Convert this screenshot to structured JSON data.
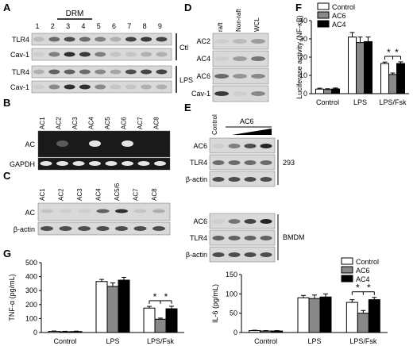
{
  "panels": {
    "A": {
      "letter": "A",
      "drm_label": "DRM",
      "lanes": [
        "1",
        "2",
        "3",
        "4",
        "5",
        "6",
        "7",
        "8",
        "9"
      ],
      "rows": [
        "TLR4",
        "Cav-1",
        "TLR4",
        "Cav-1"
      ],
      "groups": [
        "Ctl",
        "LPS"
      ]
    },
    "B": {
      "letter": "B",
      "lanes": [
        "AC1",
        "AC2",
        "AC3",
        "AC4",
        "AC5",
        "AC6",
        "AC7",
        "AC8"
      ],
      "rows": [
        "AC",
        "GAPDH"
      ]
    },
    "C": {
      "letter": "C",
      "lanes": [
        "AC1",
        "AC2",
        "AC3",
        "AC4",
        "AC5/6",
        "AC7",
        "AC8"
      ],
      "rows": [
        "AC",
        "β-actin"
      ]
    },
    "D": {
      "letter": "D",
      "lanes": [
        "raft",
        "Non-raft",
        "WCL"
      ],
      "rows": [
        "AC2",
        "AC4",
        "AC6",
        "Cav-1"
      ]
    },
    "E": {
      "letter": "E",
      "control_label": "Control",
      "treatment_label": "AC6",
      "rows_top": [
        "AC6",
        "TLR4",
        "β-actin"
      ],
      "rows_bottom": [
        "AC6",
        "TLR4",
        "β-actin"
      ],
      "cells_top": "293",
      "cells_bottom": "BMDM"
    },
    "F": {
      "letter": "F"
    },
    "G": {
      "letter": "G"
    }
  },
  "star": "*",
  "chart_data": [
    {
      "panel": "F",
      "type": "bar",
      "ylabel": "Luciferase activity (NF-κB)",
      "categories": [
        "Control",
        "LPS",
        "LPS/Fsk"
      ],
      "series": [
        {
          "name": "Control",
          "values": [
            2.5,
            31,
            16.5
          ],
          "errors": [
            0.5,
            2.5,
            0.8
          ],
          "color": "#ffffff"
        },
        {
          "name": "AC6",
          "values": [
            2.3,
            28,
            10.5
          ],
          "errors": [
            0.4,
            3.0,
            0.8
          ],
          "color": "#888888"
        },
        {
          "name": "AC4",
          "values": [
            2.6,
            28.5,
            16.5
          ],
          "errors": [
            0.5,
            2.5,
            0.9
          ],
          "color": "#000000"
        }
      ],
      "ylim": [
        0,
        40
      ],
      "yticks": [
        0,
        10,
        20,
        30,
        40
      ],
      "significance": "*",
      "legend": "top-left"
    },
    {
      "panel": "G-left",
      "type": "bar",
      "ylabel": "TNF-α (pg/mL)",
      "categories": [
        "Control",
        "LPS",
        "LPS/Fsk"
      ],
      "series": [
        {
          "name": "Control",
          "values": [
            8,
            365,
            175
          ],
          "errors": [
            3,
            15,
            12
          ],
          "color": "#ffffff"
        },
        {
          "name": "AC6",
          "values": [
            6,
            330,
            95
          ],
          "errors": [
            3,
            25,
            8
          ],
          "color": "#888888"
        },
        {
          "name": "AC4",
          "values": [
            7,
            375,
            170
          ],
          "errors": [
            3,
            20,
            18
          ],
          "color": "#000000"
        }
      ],
      "ylim": [
        0,
        500
      ],
      "yticks": [
        0,
        100,
        200,
        300,
        400,
        500
      ],
      "significance": "*"
    },
    {
      "panel": "G-right",
      "type": "bar",
      "ylabel": "IL-6 (pg/mL)",
      "categories": [
        "Control",
        "LPS",
        "LPS/Fsk"
      ],
      "series": [
        {
          "name": "Control",
          "values": [
            5,
            90,
            78
          ],
          "errors": [
            1,
            6,
            7
          ],
          "color": "#ffffff"
        },
        {
          "name": "AC6",
          "values": [
            4,
            88,
            50
          ],
          "errors": [
            1,
            9,
            7
          ],
          "color": "#888888"
        },
        {
          "name": "AC4",
          "values": [
            4,
            92,
            85
          ],
          "errors": [
            1,
            8,
            6
          ],
          "color": "#000000"
        }
      ],
      "ylim": [
        0,
        150
      ],
      "yticks": [
        0,
        50,
        100,
        150
      ],
      "significance": "*",
      "legend": "top-right"
    }
  ]
}
